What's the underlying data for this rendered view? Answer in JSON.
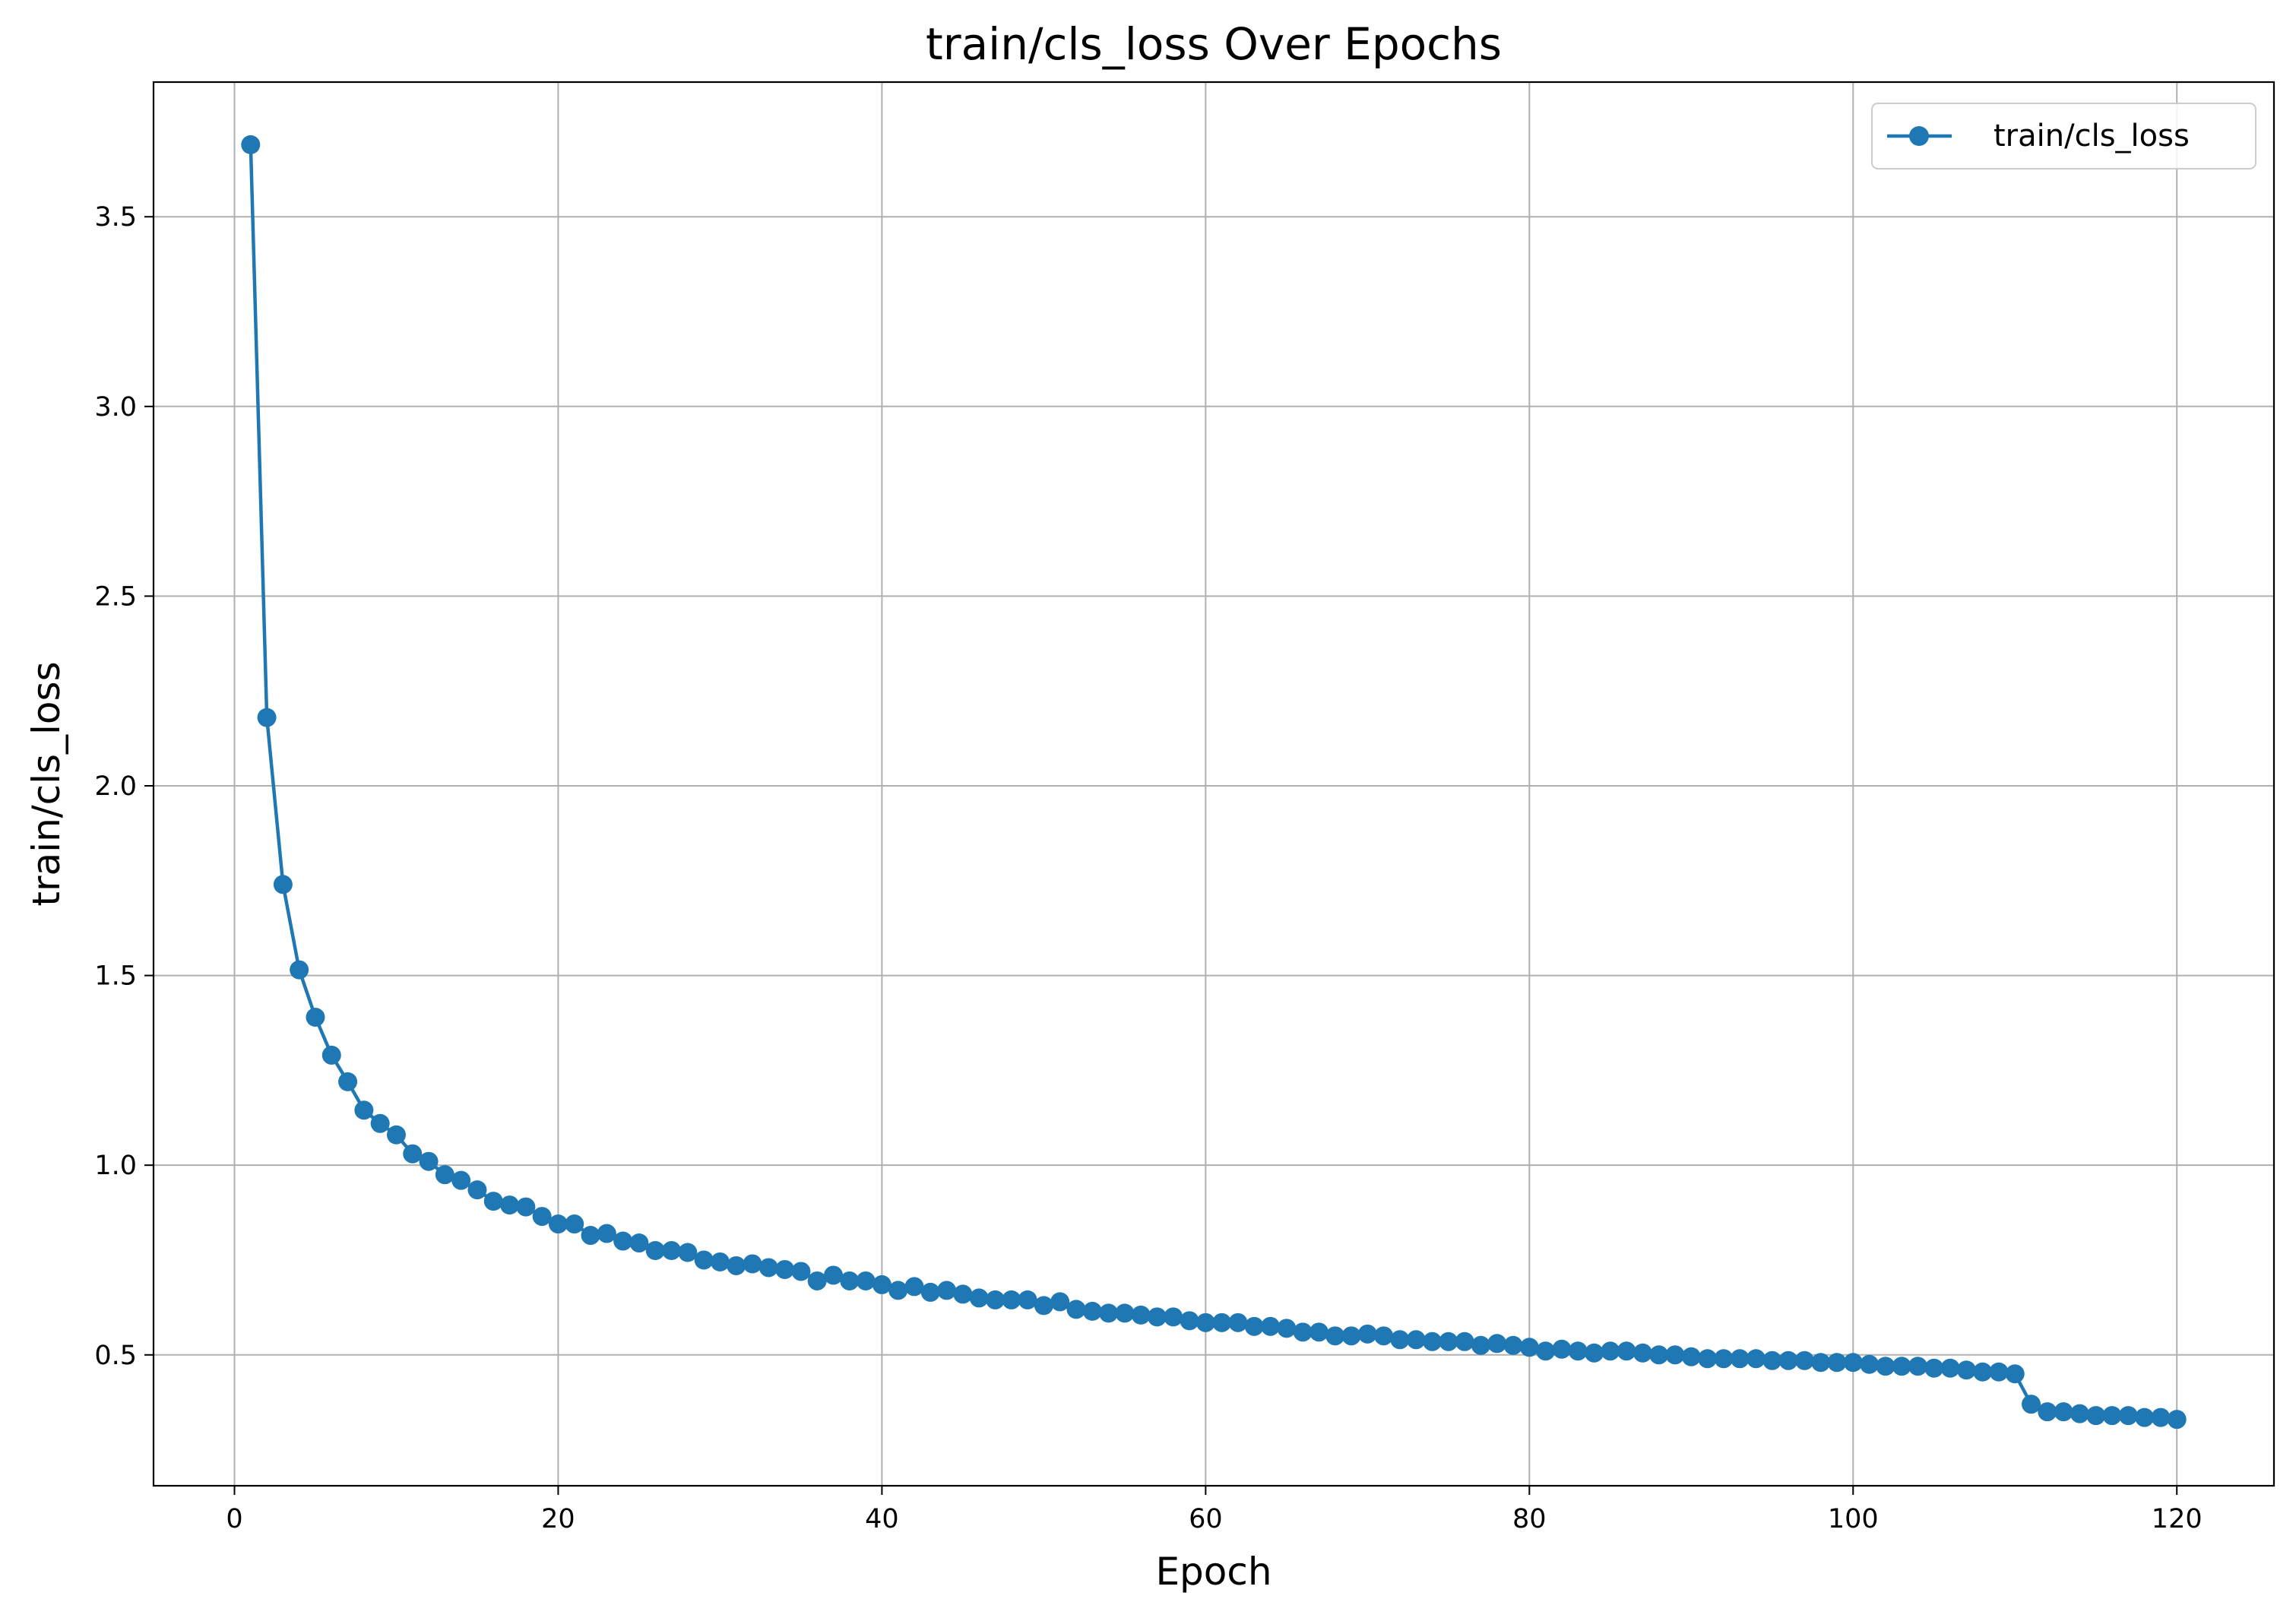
{
  "chart_data": {
    "type": "line",
    "title": "train/cls_loss Over Epochs",
    "xlabel": "Epoch",
    "ylabel": "train/cls_loss",
    "xlim": [
      -5,
      126
    ],
    "ylim": [
      0.155,
      3.855
    ],
    "x_ticks": [
      0,
      20,
      40,
      60,
      80,
      100,
      120
    ],
    "y_ticks": [
      0.5,
      1.0,
      1.5,
      2.0,
      2.5,
      3.0,
      3.5
    ],
    "x_tick_labels": [
      "0",
      "20",
      "40",
      "60",
      "80",
      "100",
      "120"
    ],
    "y_tick_labels": [
      "0.5",
      "1.0",
      "1.5",
      "2.0",
      "2.5",
      "3.0",
      "3.5"
    ],
    "grid": true,
    "legend_position": "top-right",
    "line_color": "#1f77b4",
    "marker": "circle",
    "series": [
      {
        "name": "train/cls_loss",
        "x": [
          1,
          2,
          3,
          4,
          5,
          6,
          7,
          8,
          9,
          10,
          11,
          12,
          13,
          14,
          15,
          16,
          17,
          18,
          19,
          20,
          21,
          22,
          23,
          24,
          25,
          26,
          27,
          28,
          29,
          30,
          31,
          32,
          33,
          34,
          35,
          36,
          37,
          38,
          39,
          40,
          41,
          42,
          43,
          44,
          45,
          46,
          47,
          48,
          49,
          50,
          51,
          52,
          53,
          54,
          55,
          56,
          57,
          58,
          59,
          60,
          61,
          62,
          63,
          64,
          65,
          66,
          67,
          68,
          69,
          70,
          71,
          72,
          73,
          74,
          75,
          76,
          77,
          78,
          79,
          80,
          81,
          82,
          83,
          84,
          85,
          86,
          87,
          88,
          89,
          90,
          91,
          92,
          93,
          94,
          95,
          96,
          97,
          98,
          99,
          100,
          101,
          102,
          103,
          104,
          105,
          106,
          107,
          108,
          109,
          110,
          111,
          112,
          113,
          114,
          115,
          116,
          117,
          118,
          119,
          120
        ],
        "values": [
          3.69,
          2.18,
          1.74,
          1.515,
          1.39,
          1.29,
          1.22,
          1.145,
          1.11,
          1.08,
          1.03,
          1.01,
          0.975,
          0.96,
          0.935,
          0.905,
          0.895,
          0.89,
          0.865,
          0.845,
          0.845,
          0.815,
          0.82,
          0.8,
          0.795,
          0.775,
          0.775,
          0.77,
          0.75,
          0.745,
          0.735,
          0.74,
          0.73,
          0.725,
          0.72,
          0.695,
          0.71,
          0.695,
          0.695,
          0.685,
          0.67,
          0.68,
          0.665,
          0.67,
          0.66,
          0.65,
          0.645,
          0.645,
          0.645,
          0.63,
          0.64,
          0.62,
          0.615,
          0.61,
          0.61,
          0.605,
          0.6,
          0.6,
          0.59,
          0.585,
          0.585,
          0.585,
          0.575,
          0.575,
          0.57,
          0.56,
          0.56,
          0.55,
          0.55,
          0.555,
          0.55,
          0.54,
          0.54,
          0.535,
          0.535,
          0.535,
          0.525,
          0.53,
          0.525,
          0.52,
          0.51,
          0.515,
          0.51,
          0.505,
          0.51,
          0.51,
          0.505,
          0.5,
          0.5,
          0.495,
          0.49,
          0.49,
          0.49,
          0.49,
          0.485,
          0.485,
          0.485,
          0.48,
          0.48,
          0.48,
          0.475,
          0.47,
          0.47,
          0.47,
          0.465,
          0.465,
          0.46,
          0.455,
          0.455,
          0.45,
          0.37,
          0.35,
          0.35,
          0.345,
          0.34,
          0.34,
          0.34,
          0.335,
          0.335,
          0.33
        ]
      }
    ]
  }
}
